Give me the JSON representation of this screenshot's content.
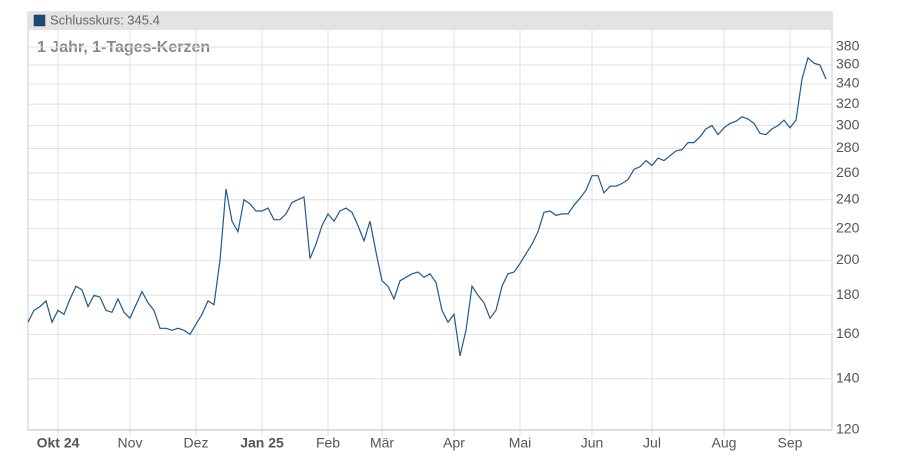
{
  "chart_data": {
    "type": "line",
    "legend": "Schlusskurs: 345.4",
    "subtitle": "1 Jahr, 1-Tages-Kerzen",
    "log_scale": true,
    "grid": true,
    "ylim": [
      120,
      400
    ],
    "yticks": [
      120,
      140,
      160,
      180,
      200,
      220,
      240,
      260,
      280,
      300,
      320,
      340,
      360,
      380
    ],
    "xticks": [
      {
        "value": 5,
        "label": "Okt 24"
      },
      {
        "value": 17,
        "label": "Nov"
      },
      {
        "value": 28,
        "label": "Dez"
      },
      {
        "value": 39,
        "label": "Jan 25"
      },
      {
        "value": 50,
        "label": "Feb"
      },
      {
        "value": 59,
        "label": "Mär"
      },
      {
        "value": 71,
        "label": "Apr"
      },
      {
        "value": 82,
        "label": "Mai"
      },
      {
        "value": 94,
        "label": "Jun"
      },
      {
        "value": 104,
        "label": "Jul"
      },
      {
        "value": 116,
        "label": "Aug"
      },
      {
        "value": 127,
        "label": "Sep"
      }
    ],
    "series": [
      {
        "name": "Schlusskurs",
        "color": "#1f5a8c",
        "values": [
          166,
          172,
          174,
          177,
          166,
          172,
          170,
          178,
          185,
          183,
          174,
          180,
          179,
          172,
          171,
          178,
          171,
          168,
          175,
          182,
          176,
          172,
          163,
          163,
          162,
          163,
          162,
          160,
          165,
          170,
          177,
          175,
          200,
          248,
          225,
          218,
          240,
          237,
          232,
          232,
          234,
          226,
          226,
          230,
          238,
          240,
          242,
          201,
          210,
          222,
          230,
          225,
          232,
          234,
          231,
          222,
          212,
          225,
          205,
          188,
          185,
          178,
          188,
          190,
          192,
          193,
          190,
          192,
          187,
          172,
          166,
          170,
          150,
          162,
          185,
          180,
          176,
          168,
          172,
          185,
          192,
          193,
          198,
          204,
          210,
          218,
          231,
          232,
          229,
          230,
          230,
          236,
          241,
          247,
          258,
          258,
          245,
          250,
          250,
          252,
          255,
          263,
          265,
          270,
          266,
          272,
          270,
          274,
          278,
          279,
          285,
          285,
          290,
          297,
          300,
          292,
          298,
          302,
          304,
          308,
          306,
          302,
          293,
          292,
          297,
          300,
          305,
          298,
          305,
          345,
          368,
          362,
          360,
          345
        ]
      }
    ]
  }
}
